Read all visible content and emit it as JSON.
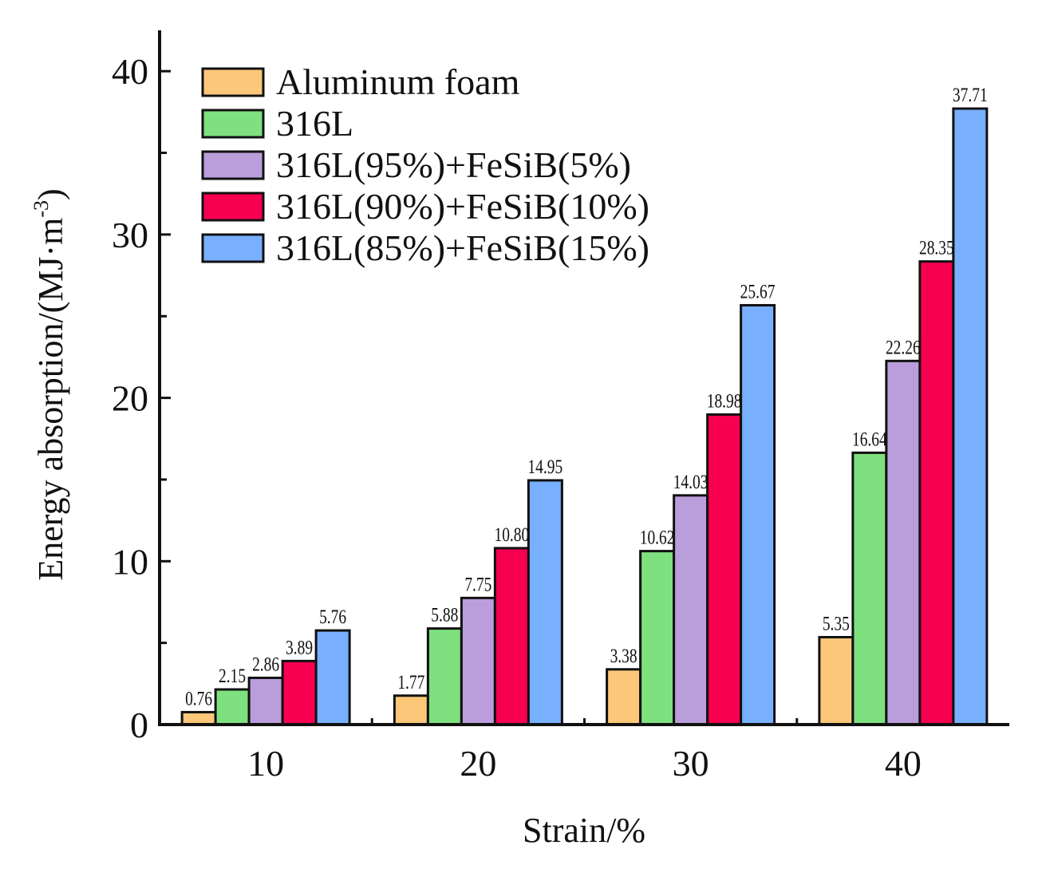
{
  "chart_data": {
    "type": "bar",
    "title": "",
    "xlabel": "Strain/%",
    "ylabel": "Energy absorption/(MJ·m",
    "ylabel_superscript": "-3",
    "ylabel_close": ")",
    "categories": [
      "10",
      "20",
      "30",
      "40"
    ],
    "ylim": [
      0,
      43
    ],
    "yticks": [
      "0",
      "10",
      "20",
      "30",
      "40"
    ],
    "ytick_values": [
      0,
      10,
      20,
      30,
      40
    ],
    "grid": false,
    "legend_position": "top-left",
    "series": [
      {
        "name": "Aluminum foam",
        "color": "#FDC77A",
        "values": [
          0.76,
          1.77,
          3.38,
          5.35
        ],
        "labels": [
          "0.76",
          "1.77",
          "3.38",
          "5.35"
        ]
      },
      {
        "name": "316L",
        "color": "#7EE07E",
        "values": [
          2.15,
          5.88,
          10.62,
          16.64
        ],
        "labels": [
          "2.15",
          "5.88",
          "10.62",
          "16.64"
        ]
      },
      {
        "name": "316L(95%)+FeSiB(5%)",
        "color": "#BA9EDB",
        "values": [
          2.86,
          7.75,
          14.03,
          22.26
        ],
        "labels": [
          "2.86",
          "7.75",
          "14.03",
          "22.26"
        ]
      },
      {
        "name": "316L(90%)+FeSiB(10%)",
        "color": "#F80050",
        "values": [
          3.89,
          10.8,
          18.98,
          28.35
        ],
        "labels": [
          "3.89",
          "10.80",
          "18.98",
          "28.35"
        ]
      },
      {
        "name": "316L(85%)+FeSiB(15%)",
        "color": "#78B0FF",
        "values": [
          5.76,
          14.95,
          25.67,
          37.71
        ],
        "labels": [
          "5.76",
          "14.95",
          "25.67",
          "37.71"
        ]
      }
    ]
  }
}
